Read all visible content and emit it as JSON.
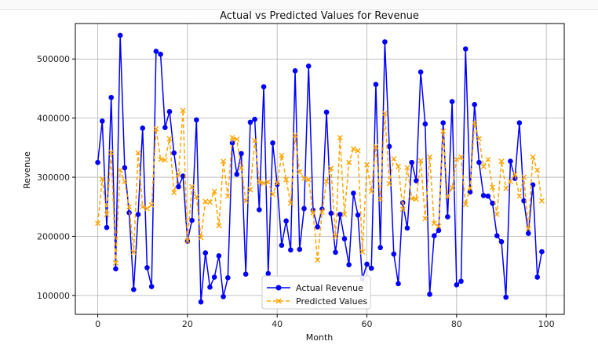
{
  "chart_data": {
    "type": "line",
    "title": "Actual vs Predicted Values for Revenue",
    "xlabel": "Month",
    "ylabel": "Revenue",
    "xlim": [
      -5,
      104
    ],
    "ylim": [
      68000,
      560000
    ],
    "xticks": [
      0,
      20,
      40,
      60,
      80,
      100
    ],
    "yticks": [
      100000,
      200000,
      300000,
      400000,
      500000
    ],
    "grid": true,
    "legend_position": "bottom-center",
    "x": [
      0,
      1,
      2,
      3,
      4,
      5,
      6,
      7,
      8,
      9,
      10,
      11,
      12,
      13,
      14,
      15,
      16,
      17,
      18,
      19,
      20,
      21,
      22,
      23,
      24,
      25,
      26,
      27,
      28,
      29,
      30,
      31,
      32,
      33,
      34,
      35,
      36,
      37,
      38,
      39,
      40,
      41,
      42,
      43,
      44,
      45,
      46,
      47,
      48,
      49,
      50,
      51,
      52,
      53,
      54,
      55,
      56,
      57,
      58,
      59,
      60,
      61,
      62,
      63,
      64,
      65,
      66,
      67,
      68,
      69,
      70,
      71,
      72,
      73,
      74,
      75,
      76,
      77,
      78,
      79,
      80,
      81,
      82,
      83,
      84,
      85,
      86,
      87,
      88,
      89,
      90,
      91,
      92,
      93,
      94,
      95,
      96,
      97,
      98,
      99
    ],
    "series": [
      {
        "name": "Actual Revenue",
        "color": "#0000ff",
        "marker": "circle",
        "values": [
          325000,
          395000,
          215000,
          435000,
          145000,
          540000,
          316000,
          240000,
          110000,
          237000,
          383000,
          147000,
          115000,
          513000,
          508000,
          384000,
          411000,
          341000,
          284000,
          302000,
          192000,
          227000,
          397000,
          89000,
          172000,
          114000,
          131000,
          167000,
          98000,
          130000,
          358000,
          305000,
          340000,
          136000,
          393000,
          398000,
          245000,
          453000,
          137000,
          358000,
          288000,
          185000,
          226000,
          177000,
          480000,
          178000,
          247000,
          488000,
          244000,
          216000,
          246000,
          410000,
          239000,
          173000,
          237000,
          196000,
          152000,
          273000,
          236000,
          128000,
          153000,
          146000,
          457000,
          181000,
          529000,
          352000,
          170000,
          120000,
          257000,
          214000,
          325000,
          294000,
          478000,
          390000,
          102000,
          201000,
          210000,
          392000,
          233000,
          428000,
          118000,
          124000,
          517000,
          275000,
          423000,
          325000,
          269000,
          268000,
          256000,
          201000,
          191000,
          97000,
          327000,
          298000,
          392000,
          260000,
          205000,
          287000,
          131000,
          174000
        ]
      },
      {
        "name": "Predicted Values",
        "color": "#ffa500",
        "marker": "x",
        "values": [
          222000,
          297000,
          237000,
          342000,
          155000,
          312000,
          293000,
          250000,
          173000,
          341000,
          250000,
          247000,
          253000,
          382000,
          330000,
          329000,
          365000,
          274000,
          305000,
          413000,
          192000,
          284000,
          267000,
          198000,
          259000,
          258000,
          276000,
          218000,
          327000,
          268000,
          367000,
          364000,
          316000,
          260000,
          279000,
          362000,
          292000,
          290000,
          292000,
          271000,
          291000,
          337000,
          296000,
          256000,
          371000,
          309000,
          298000,
          296000,
          240000,
          160000,
          241000,
          293000,
          315000,
          200000,
          367000,
          237000,
          325000,
          348000,
          345000,
          174000,
          321000,
          276000,
          352000,
          263000,
          408000,
          289000,
          331000,
          318000,
          246000,
          316000,
          264000,
          263000,
          328000,
          230000,
          334000,
          222000,
          217000,
          378000,
          267000,
          282000,
          330000,
          334000,
          254000,
          282000,
          392000,
          365000,
          318000,
          330000,
          283000,
          237000,
          327000,
          281000,
          293000,
          305000,
          268000,
          300000,
          213000,
          334000,
          312000,
          260000
        ]
      }
    ]
  }
}
